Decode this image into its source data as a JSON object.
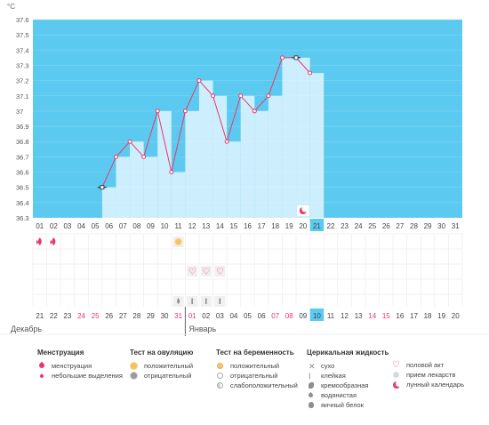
{
  "chart_data": {
    "type": "line",
    "unit": "°C",
    "ylim": [
      36.3,
      37.6
    ],
    "yticks": [
      "37.6",
      "37.5",
      "37.4",
      "37.3",
      "37.2",
      "37.1",
      "37",
      "36.9",
      "36.8",
      "36.7",
      "36.6",
      "36.5",
      "36.4",
      "36.3"
    ],
    "cycle_days": [
      "01",
      "02",
      "03",
      "04",
      "05",
      "06",
      "07",
      "08",
      "09",
      "10",
      "11",
      "12",
      "13",
      "14",
      "15",
      "16",
      "17",
      "18",
      "19",
      "20",
      "21",
      "22",
      "23",
      "24",
      "25",
      "26",
      "27",
      "28",
      "29",
      "30",
      "31"
    ],
    "current_day": "21",
    "values": [
      null,
      null,
      null,
      null,
      null,
      36.5,
      36.7,
      36.8,
      36.7,
      37.0,
      36.6,
      37.0,
      37.2,
      37.1,
      36.8,
      37.1,
      37.0,
      37.1,
      37.35,
      37.35,
      37.25,
      null,
      null,
      null,
      null,
      null,
      null,
      null,
      null,
      null,
      null
    ],
    "square_markers": [
      "06",
      "20"
    ],
    "calendar_dates": [
      {
        "d": "21",
        "red": false
      },
      {
        "d": "22",
        "red": false
      },
      {
        "d": "23",
        "red": false
      },
      {
        "d": "24",
        "red": true
      },
      {
        "d": "25",
        "red": true
      },
      {
        "d": "26",
        "red": false
      },
      {
        "d": "27",
        "red": false
      },
      {
        "d": "28",
        "red": false
      },
      {
        "d": "29",
        "red": false
      },
      {
        "d": "30",
        "red": false
      },
      {
        "d": "31",
        "red": true
      },
      {
        "d": "01",
        "red": true
      },
      {
        "d": "02",
        "red": false
      },
      {
        "d": "03",
        "red": false
      },
      {
        "d": "04",
        "red": false
      },
      {
        "d": "05",
        "red": false
      },
      {
        "d": "06",
        "red": false
      },
      {
        "d": "07",
        "red": true
      },
      {
        "d": "08",
        "red": true
      },
      {
        "d": "09",
        "red": false
      },
      {
        "d": "10",
        "red": false,
        "highlight": true
      },
      {
        "d": "11",
        "red": false
      },
      {
        "d": "12",
        "red": false
      },
      {
        "d": "13",
        "red": false
      },
      {
        "d": "14",
        "red": true
      },
      {
        "d": "15",
        "red": true
      },
      {
        "d": "16",
        "red": false
      },
      {
        "d": "17",
        "red": false
      },
      {
        "d": "18",
        "red": false
      },
      {
        "d": "19",
        "red": false
      },
      {
        "d": "20",
        "red": false
      }
    ],
    "month_labels": [
      {
        "label": "Декабрь",
        "at_index": 0
      },
      {
        "label": "Январь",
        "at_index": 11
      }
    ],
    "markers": {
      "menstruation": [
        "01",
        "02"
      ],
      "ovulation_positive": [
        "11"
      ],
      "intercourse": [
        "12",
        "13",
        "14"
      ],
      "fluid_watery": [
        "11"
      ],
      "fluid_sticky": [
        "12",
        "13",
        "14"
      ],
      "lunar_calendar": [
        "20"
      ]
    },
    "colors": {
      "chart_bg": "#5ccaf0",
      "bar": "#cdeefc",
      "line": "#e8396a",
      "accent": "#e8396a",
      "today_bg": "#5ccaf0",
      "red_date": "#e8396a"
    }
  },
  "legend": {
    "menstruation": {
      "title": "Менструация",
      "items": [
        {
          "icon": "drop-icon",
          "label": "менструация"
        },
        {
          "icon": "small-drop-icon",
          "label": "небольшие выделения"
        }
      ]
    },
    "ovulation": {
      "title": "Тест на овуляцию",
      "items": [
        {
          "icon": "sun-positive-icon",
          "label": "положительный"
        },
        {
          "icon": "sun-negative-icon",
          "label": "отрицательный"
        }
      ]
    },
    "pregnancy": {
      "title": "Тест на беременность",
      "items": [
        {
          "icon": "circle-positive-icon",
          "label": "положительный"
        },
        {
          "icon": "circle-negative-icon",
          "label": "отрицательный"
        },
        {
          "icon": "circle-weak-icon",
          "label": "слабоположительный"
        }
      ]
    },
    "fluid": {
      "title": "Церикальная жидкость",
      "items": [
        {
          "icon": "cross-icon",
          "label": "сухо"
        },
        {
          "icon": "sticky-icon",
          "label": "клейкая"
        },
        {
          "icon": "creamy-icon",
          "label": "кремообразная"
        },
        {
          "icon": "watery-icon",
          "label": "водянистая"
        },
        {
          "icon": "eggwhite-icon",
          "label": "яичный белок"
        }
      ]
    },
    "other": {
      "items": [
        {
          "icon": "heart-icon",
          "label": "половой акт"
        },
        {
          "icon": "pill-icon",
          "label": "прием лекарств"
        },
        {
          "icon": "moon-icon",
          "label": "лунный календарь"
        }
      ]
    }
  }
}
